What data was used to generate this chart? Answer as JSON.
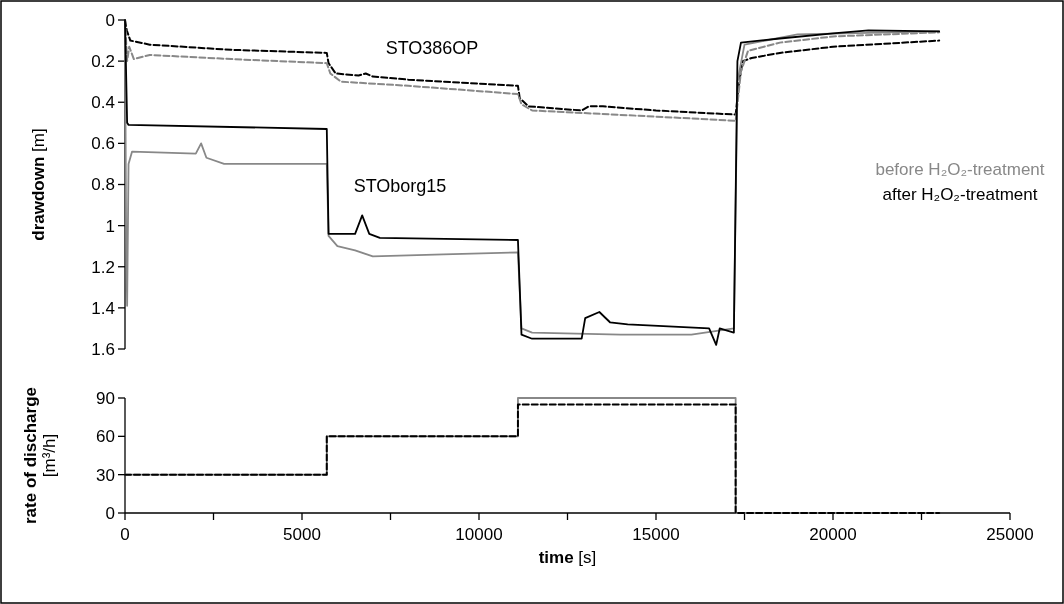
{
  "chart_data": [
    {
      "type": "line",
      "ylabel": "drawdown [m]",
      "xlim": [
        0,
        25000
      ],
      "ylim": [
        1.6,
        0
      ],
      "yticks": [
        0,
        0.2,
        0.4,
        0.6,
        0.8,
        1,
        1.2,
        1.4,
        1.6
      ],
      "tick_labels": "y",
      "legend": "right",
      "marker": "none",
      "annotations": [
        "STO386OP",
        "STOborg15"
      ],
      "series": [
        {
          "color": "#000000",
          "line_style": "dashed",
          "x": [
            0,
            50,
            150,
            700,
            3000,
            5700,
            5750,
            5950,
            6600,
            6800,
            7000,
            8000,
            11100,
            11150,
            11400,
            12900,
            13100,
            13500,
            15000,
            17250,
            17350,
            17450,
            17700,
            18500,
            20000,
            23000
          ],
          "values": [
            0,
            0.05,
            0.1,
            0.12,
            0.145,
            0.16,
            0.21,
            0.26,
            0.27,
            0.26,
            0.275,
            0.29,
            0.32,
            0.38,
            0.42,
            0.44,
            0.42,
            0.42,
            0.44,
            0.46,
            0.3,
            0.2,
            0.185,
            0.16,
            0.13,
            0.1
          ]
        },
        {
          "color": "#888888",
          "line_style": "dashed",
          "x": [
            0,
            60,
            120,
            250,
            700,
            3000,
            5700,
            5800,
            6100,
            8000,
            11100,
            11200,
            11500,
            15000,
            17250,
            17400,
            17600,
            18500,
            20000,
            23000
          ],
          "values": [
            0,
            0.2,
            0.13,
            0.19,
            0.17,
            0.19,
            0.21,
            0.26,
            0.3,
            0.32,
            0.36,
            0.41,
            0.44,
            0.47,
            0.49,
            0.25,
            0.15,
            0.11,
            0.08,
            0.06
          ]
        },
        {
          "name": "before H₂O₂-treatment",
          "color": "#888888",
          "line_style": "solid",
          "x": [
            0,
            30,
            60,
            100,
            200,
            2000,
            2150,
            2300,
            2800,
            5700,
            5750,
            6000,
            6500,
            7000,
            9000,
            11100,
            11200,
            11500,
            14000,
            16000,
            17200,
            17300,
            17500,
            19000,
            23000
          ],
          "values": [
            0,
            1,
            1.39,
            0.7,
            0.64,
            0.65,
            0.6,
            0.67,
            0.7,
            0.7,
            1.05,
            1.1,
            1.12,
            1.15,
            1.14,
            1.13,
            1.5,
            1.52,
            1.53,
            1.53,
            1.5,
            0.3,
            0.12,
            0.07,
            0.055
          ]
        },
        {
          "name": "after H₂O₂-treatment",
          "color": "#000000",
          "line_style": "solid",
          "x": [
            0,
            60,
            100,
            5700,
            5750,
            6500,
            6700,
            6900,
            7200,
            11100,
            11200,
            11500,
            12900,
            13000,
            13400,
            13700,
            14200,
            16500,
            16700,
            16800,
            17200,
            17300,
            17400,
            18500,
            20000,
            21000,
            23000
          ],
          "values": [
            0,
            0.5,
            0.51,
            0.53,
            1.04,
            1.04,
            0.95,
            1.04,
            1.06,
            1.07,
            1.53,
            1.55,
            1.55,
            1.45,
            1.42,
            1.47,
            1.48,
            1.5,
            1.58,
            1.5,
            1.52,
            0.2,
            0.11,
            0.09,
            0.065,
            0.05,
            0.055
          ]
        }
      ]
    },
    {
      "type": "step",
      "ylabel": "rate of discharge [m³/h]",
      "xlabel": "time [s]",
      "xlim": [
        0,
        25000
      ],
      "ylim": [
        0,
        90
      ],
      "yticks": [
        0,
        30,
        60,
        90
      ],
      "marker": "none",
      "xticks": [
        0,
        {
          "value": 2500,
          "label": null
        },
        5000,
        {
          "value": 7500,
          "label": null
        },
        10000,
        {
          "value": 12500,
          "label": null
        },
        15000,
        {
          "value": 17500,
          "label": null
        },
        20000,
        {
          "value": 22500,
          "label": null
        },
        25000
      ],
      "series": [
        {
          "color": "#888888",
          "line_style": "solid",
          "x": [
            0,
            5700,
            11100,
            17250,
            23000
          ],
          "values": [
            30,
            60,
            90,
            0,
            0
          ]
        },
        {
          "color": "#000000",
          "line_style": "dashed",
          "x": [
            0,
            5700,
            11100,
            17250,
            23000
          ],
          "values": [
            30,
            60,
            85,
            0,
            0
          ]
        }
      ]
    }
  ]
}
